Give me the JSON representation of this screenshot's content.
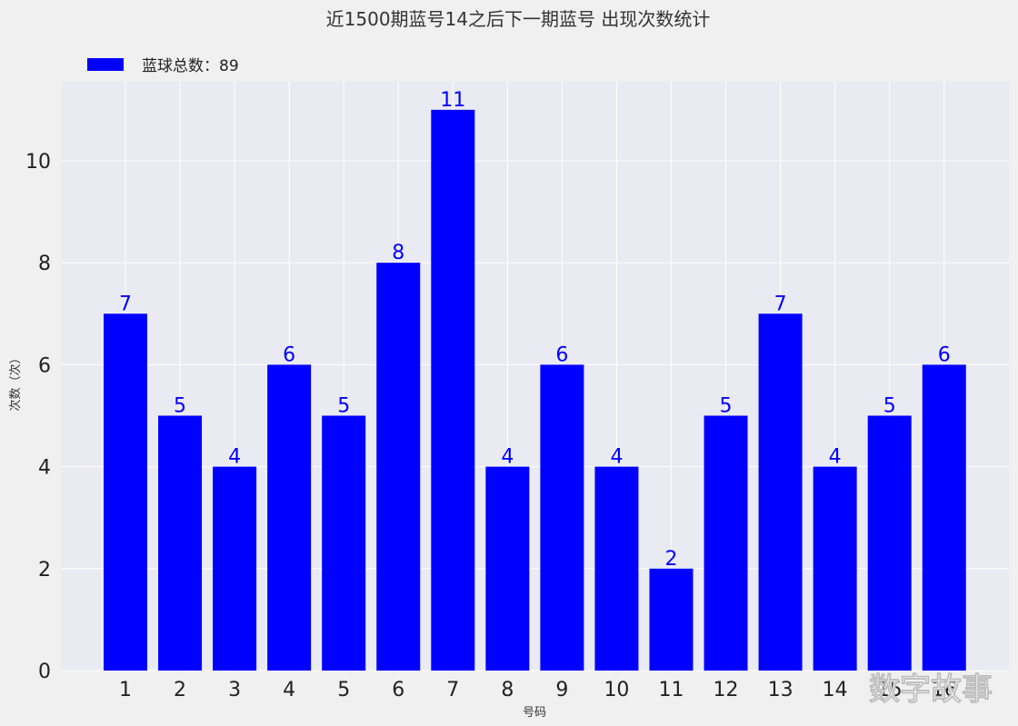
{
  "chart_data": {
    "type": "bar",
    "title": "近1500期蓝号14之后下一期蓝号 出现次数统计",
    "xlabel": "号码",
    "ylabel": "次数（次）",
    "categories": [
      "1",
      "2",
      "3",
      "4",
      "5",
      "6",
      "7",
      "8",
      "9",
      "10",
      "11",
      "12",
      "13",
      "14",
      "15",
      "16"
    ],
    "series": [
      {
        "name": "蓝球总数：89",
        "values": [
          7,
          5,
          4,
          6,
          5,
          8,
          11,
          4,
          6,
          4,
          2,
          5,
          7,
          4,
          5,
          6
        ]
      }
    ],
    "ylim": [
      0,
      11.55
    ],
    "yticks": [
      0,
      2,
      4,
      6,
      8,
      10
    ],
    "grid": true,
    "legend": "top-left",
    "colors": {
      "bar": "#0000ff",
      "plot_bg": "#eaeaf2",
      "grid": "#ffffff",
      "figure_bg": "#f0f0f0"
    }
  },
  "watermark": "数字故事"
}
